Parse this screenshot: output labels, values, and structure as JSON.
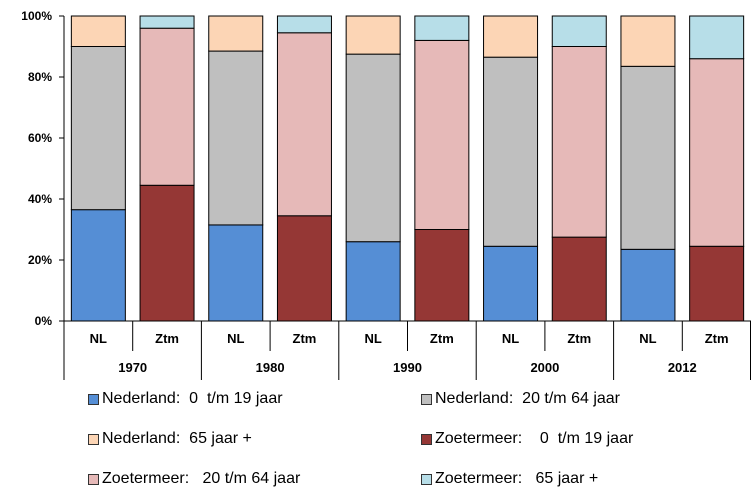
{
  "chart_data": {
    "type": "bar",
    "stacked": true,
    "percent": true,
    "ylim": [
      0,
      100
    ],
    "yticks": [
      "0%",
      "20%",
      "40%",
      "60%",
      "80%",
      "100%"
    ],
    "grid": false,
    "legend_placement": "bottom",
    "groups": [
      {
        "label": "1970",
        "categories": [
          "NL",
          "Ztm"
        ]
      },
      {
        "label": "1980",
        "categories": [
          "NL",
          "Ztm"
        ]
      },
      {
        "label": "1990",
        "categories": [
          "NL",
          "Ztm"
        ]
      },
      {
        "label": "2000",
        "categories": [
          "NL",
          "Ztm"
        ]
      },
      {
        "label": "2012",
        "categories": [
          "NL",
          "Ztm"
        ]
      }
    ],
    "bars": [
      {
        "group": "1970",
        "category": "NL",
        "segments": [
          {
            "series": "nl_0_19",
            "value": 36.5
          },
          {
            "series": "nl_20_64",
            "value": 53.5
          },
          {
            "series": "nl_65",
            "value": 10.0
          }
        ]
      },
      {
        "group": "1970",
        "category": "Ztm",
        "segments": [
          {
            "series": "ztm_0_19",
            "value": 44.5
          },
          {
            "series": "ztm_20_64",
            "value": 51.5
          },
          {
            "series": "ztm_65",
            "value": 4.0
          }
        ]
      },
      {
        "group": "1980",
        "category": "NL",
        "segments": [
          {
            "series": "nl_0_19",
            "value": 31.5
          },
          {
            "series": "nl_20_64",
            "value": 57.0
          },
          {
            "series": "nl_65",
            "value": 11.5
          }
        ]
      },
      {
        "group": "1980",
        "category": "Ztm",
        "segments": [
          {
            "series": "ztm_0_19",
            "value": 34.5
          },
          {
            "series": "ztm_20_64",
            "value": 60.0
          },
          {
            "series": "ztm_65",
            "value": 5.5
          }
        ]
      },
      {
        "group": "1990",
        "category": "NL",
        "segments": [
          {
            "series": "nl_0_19",
            "value": 26.0
          },
          {
            "series": "nl_20_64",
            "value": 61.5
          },
          {
            "series": "nl_65",
            "value": 12.5
          }
        ]
      },
      {
        "group": "1990",
        "category": "Ztm",
        "segments": [
          {
            "series": "ztm_0_19",
            "value": 30.0
          },
          {
            "series": "ztm_20_64",
            "value": 62.0
          },
          {
            "series": "ztm_65",
            "value": 8.0
          }
        ]
      },
      {
        "group": "2000",
        "category": "NL",
        "segments": [
          {
            "series": "nl_0_19",
            "value": 24.5
          },
          {
            "series": "nl_20_64",
            "value": 62.0
          },
          {
            "series": "nl_65",
            "value": 13.5
          }
        ]
      },
      {
        "group": "2000",
        "category": "Ztm",
        "segments": [
          {
            "series": "ztm_0_19",
            "value": 27.5
          },
          {
            "series": "ztm_20_64",
            "value": 62.5
          },
          {
            "series": "ztm_65",
            "value": 10.0
          }
        ]
      },
      {
        "group": "2012",
        "category": "NL",
        "segments": [
          {
            "series": "nl_0_19",
            "value": 23.5
          },
          {
            "series": "nl_20_64",
            "value": 60.0
          },
          {
            "series": "nl_65",
            "value": 16.5
          }
        ]
      },
      {
        "group": "2012",
        "category": "Ztm",
        "segments": [
          {
            "series": "ztm_0_19",
            "value": 24.5
          },
          {
            "series": "ztm_20_64",
            "value": 61.5
          },
          {
            "series": "ztm_65",
            "value": 14.0
          }
        ]
      }
    ],
    "series": [
      {
        "key": "nl_0_19",
        "name": "Nederland:  0  t/m 19 jaar",
        "color": "#558ed5"
      },
      {
        "key": "nl_20_64",
        "name": "Nederland:  20 t/m 64 jaar",
        "color": "#bfbfbf"
      },
      {
        "key": "nl_65",
        "name": "Nederland:  65 jaar +",
        "color": "#fcd5b5"
      },
      {
        "key": "ztm_0_19",
        "name": "Zoetermeer:    0  t/m 19 jaar",
        "color": "#953735"
      },
      {
        "key": "ztm_20_64",
        "name": "Zoetermeer:   20 t/m 64 jaar",
        "color": "#e6b9b8"
      },
      {
        "key": "ztm_65",
        "name": "Zoetermeer:   65 jaar +",
        "color": "#b7dee8"
      }
    ]
  }
}
